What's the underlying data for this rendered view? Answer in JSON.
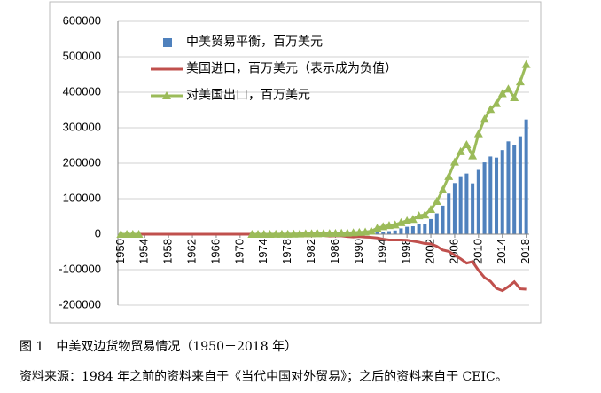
{
  "chart_data": {
    "type": "bar_line",
    "categories": [
      "1950",
      null,
      null,
      null,
      "1954",
      null,
      null,
      null,
      "1958",
      null,
      null,
      null,
      "1962",
      null,
      null,
      null,
      "1966",
      null,
      null,
      null,
      "1970",
      null,
      null,
      null,
      "1974",
      null,
      null,
      null,
      "1978",
      null,
      null,
      null,
      "1982",
      null,
      null,
      null,
      "1986",
      null,
      null,
      null,
      "1990",
      null,
      null,
      null,
      "1994",
      null,
      null,
      null,
      "1998",
      null,
      null,
      null,
      "2002",
      null,
      null,
      null,
      "2006",
      null,
      null,
      null,
      "2010",
      null,
      null,
      null,
      "2014",
      null,
      null,
      null,
      "2018"
    ],
    "series": [
      {
        "name": "中美贸易平衡，百万美元",
        "type": "bar",
        "color": "#4f81bd",
        "values": [
          0,
          0,
          0,
          0,
          null,
          null,
          null,
          null,
          null,
          null,
          null,
          null,
          null,
          null,
          null,
          null,
          null,
          null,
          null,
          null,
          null,
          null,
          5,
          -660,
          -700,
          -150,
          50,
          10,
          -450,
          -1300,
          -2847,
          -2900,
          -2600,
          -1000,
          -1500,
          -2863,
          -2100,
          -1800,
          -3200,
          -3500,
          -1277,
          -1800,
          -302,
          6277,
          7484,
          8596,
          10530,
          16405,
          20951,
          22459,
          29741,
          28079,
          42731,
          58606,
          80290,
          114280,
          144260,
          163370,
          170940,
          143340,
          181200,
          202300,
          218900,
          215800,
          237100,
          261700,
          250700,
          275900,
          323300
        ]
      },
      {
        "name": "美国进口，百万美元（表示成为负值）",
        "type": "line",
        "color": "#c0504d",
        "values": [
          0,
          0,
          0,
          0,
          0,
          0,
          0,
          0,
          0,
          0,
          0,
          0,
          0,
          0,
          0,
          0,
          0,
          0,
          0,
          0,
          0,
          0,
          -4,
          -700,
          -800,
          -300,
          -150,
          -170,
          -721,
          -1900,
          -3830,
          -4400,
          -4300,
          -2700,
          -3800,
          -5199,
          -4700,
          -4800,
          -6600,
          -7900,
          -6591,
          -8000,
          -8901,
          -10688,
          -13977,
          -16118,
          -16155,
          -16290,
          -16997,
          -19488,
          -22363,
          -26204,
          -27228,
          -33861,
          -44658,
          -48620,
          -59210,
          -69390,
          -81440,
          -77460,
          -102100,
          -122200,
          -132900,
          -152600,
          -159000,
          -147800,
          -134400,
          -153900,
          -155100
        ]
      },
      {
        "name": "对美国出口，百万美元",
        "type": "line",
        "marker": "triangle",
        "color": "#9bbb59",
        "values": [
          0,
          0,
          0,
          0,
          null,
          null,
          null,
          null,
          null,
          null,
          null,
          null,
          null,
          null,
          null,
          null,
          null,
          null,
          null,
          null,
          null,
          null,
          9,
          40,
          100,
          150,
          200,
          180,
          271,
          600,
          983,
          1500,
          1700,
          1700,
          2300,
          2336,
          2600,
          3000,
          3400,
          4400,
          5314,
          6200,
          8599,
          16965,
          21461,
          24714,
          26685,
          32695,
          37948,
          41947,
          52104,
          54283,
          69959,
          92467,
          124948,
          162900,
          203470,
          232760,
          252380,
          220800,
          283300,
          324500,
          351800,
          368400,
          396100,
          409500,
          385100,
          429800,
          478400
        ]
      }
    ],
    "ylim": [
      -200000,
      600000
    ],
    "yticks": [
      -200000,
      -100000,
      0,
      100000,
      200000,
      300000,
      400000,
      500000,
      600000
    ],
    "grid": true,
    "legend": "upper left"
  },
  "caption": {
    "figure": "图 1　中美双边货物贸易情况（1950－2018 年）",
    "source": "资料来源：1984 年之前的资料来自于《当代中国对外贸易》；之后的资料来自于 CEIC。"
  }
}
